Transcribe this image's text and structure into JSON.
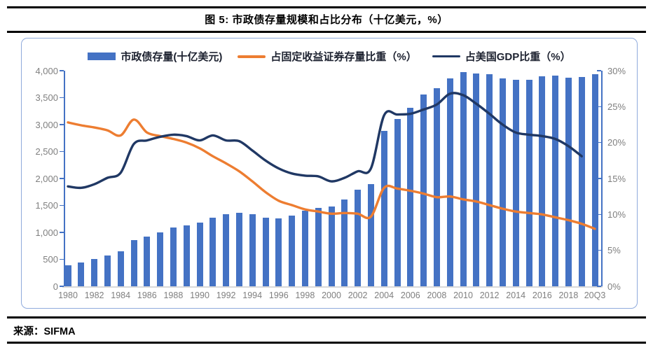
{
  "header": {
    "title": "图 5: 市政债存量规模和占比分布（十亿美元，%）"
  },
  "footer": {
    "source": "来源：SIFMA"
  },
  "chart_data": {
    "type": "bar",
    "subtype": "combo-bar-line-dual-axis",
    "title": "图 5: 市政债存量规模和占比分布（十亿美元，%）",
    "categories": [
      "1980",
      "1981",
      "1982",
      "1983",
      "1984",
      "1985",
      "1986",
      "1987",
      "1988",
      "1989",
      "1990",
      "1991",
      "1992",
      "1993",
      "1994",
      "1995",
      "1996",
      "1997",
      "1998",
      "1999",
      "2000",
      "2001",
      "2002",
      "2003",
      "2004",
      "2005",
      "2006",
      "2007",
      "2008",
      "2009",
      "2010",
      "2011",
      "2012",
      "2013",
      "2014",
      "2015",
      "2016",
      "2017",
      "2018",
      "2019",
      "20Q3"
    ],
    "x_tick_labels": [
      "1980",
      "1982",
      "1984",
      "1986",
      "1988",
      "1990",
      "1992",
      "1994",
      "1996",
      "1998",
      "2000",
      "2002",
      "2004",
      "2006",
      "2008",
      "2010",
      "2012",
      "2014",
      "2016",
      "2018",
      "20Q3"
    ],
    "series": [
      {
        "name": "市政债存量(十亿美元)",
        "type": "bar",
        "axis": "left",
        "color": "#4472C4",
        "values": [
          390,
          445,
          505,
          565,
          645,
          860,
          920,
          1000,
          1085,
          1130,
          1180,
          1275,
          1340,
          1360,
          1340,
          1275,
          1260,
          1315,
          1405,
          1460,
          1480,
          1605,
          1790,
          1900,
          2885,
          3100,
          3310,
          3560,
          3675,
          3860,
          3970,
          3950,
          3940,
          3860,
          3830,
          3835,
          3890,
          3910,
          3870,
          3880,
          3940
        ]
      },
      {
        "name": "占固定收益证券存量比重（%）",
        "type": "line",
        "axis": "right",
        "color": "#ED7D31",
        "values": [
          22.8,
          22.4,
          22.1,
          21.7,
          21.0,
          23.2,
          21.4,
          20.9,
          20.5,
          20.0,
          19.2,
          18.1,
          17.1,
          16.0,
          14.6,
          13.1,
          11.9,
          11.3,
          10.7,
          10.4,
          10.1,
          10.2,
          10.1,
          9.7,
          13.7,
          13.6,
          13.3,
          12.9,
          12.4,
          12.5,
          12.1,
          11.8,
          11.3,
          10.8,
          10.4,
          10.2,
          10.0,
          9.6,
          9.2,
          8.7,
          8.0
        ]
      },
      {
        "name": "占美国GDP比重（%）",
        "type": "line",
        "axis": "right",
        "color": "#203864",
        "values": [
          13.9,
          13.7,
          14.2,
          15.1,
          15.8,
          19.8,
          20.3,
          20.8,
          21.1,
          20.9,
          20.3,
          21.0,
          20.3,
          20.2,
          18.9,
          17.5,
          16.4,
          15.7,
          15.4,
          15.3,
          14.6,
          15.1,
          16.0,
          16.4,
          23.8,
          23.9,
          24.0,
          24.6,
          25.3,
          26.8,
          26.6,
          25.4,
          24.0,
          22.5,
          21.4,
          21.1,
          20.9,
          20.5,
          19.5,
          18.1,
          null
        ]
      }
    ],
    "left_axis": {
      "min": 0,
      "max": 4000,
      "step": 500,
      "tick_labels": [
        "0",
        "500",
        "1,000",
        "1,500",
        "2,000",
        "2,500",
        "3,000",
        "3,500",
        "4,000"
      ]
    },
    "right_axis": {
      "min": 0,
      "max": 30,
      "step": 5,
      "tick_labels": [
        "0%",
        "5%",
        "10%",
        "15%",
        "20%",
        "25%",
        "30%"
      ]
    },
    "legend_position": "top",
    "grid": false
  },
  "colors": {
    "bar": "#4472C4",
    "orange_line": "#ED7D31",
    "navy_line": "#203864",
    "axis": "#4472C4",
    "baseline": "#D9D9D9",
    "tick_text": "#7f7f7f",
    "box_border": "#8FAADC"
  }
}
